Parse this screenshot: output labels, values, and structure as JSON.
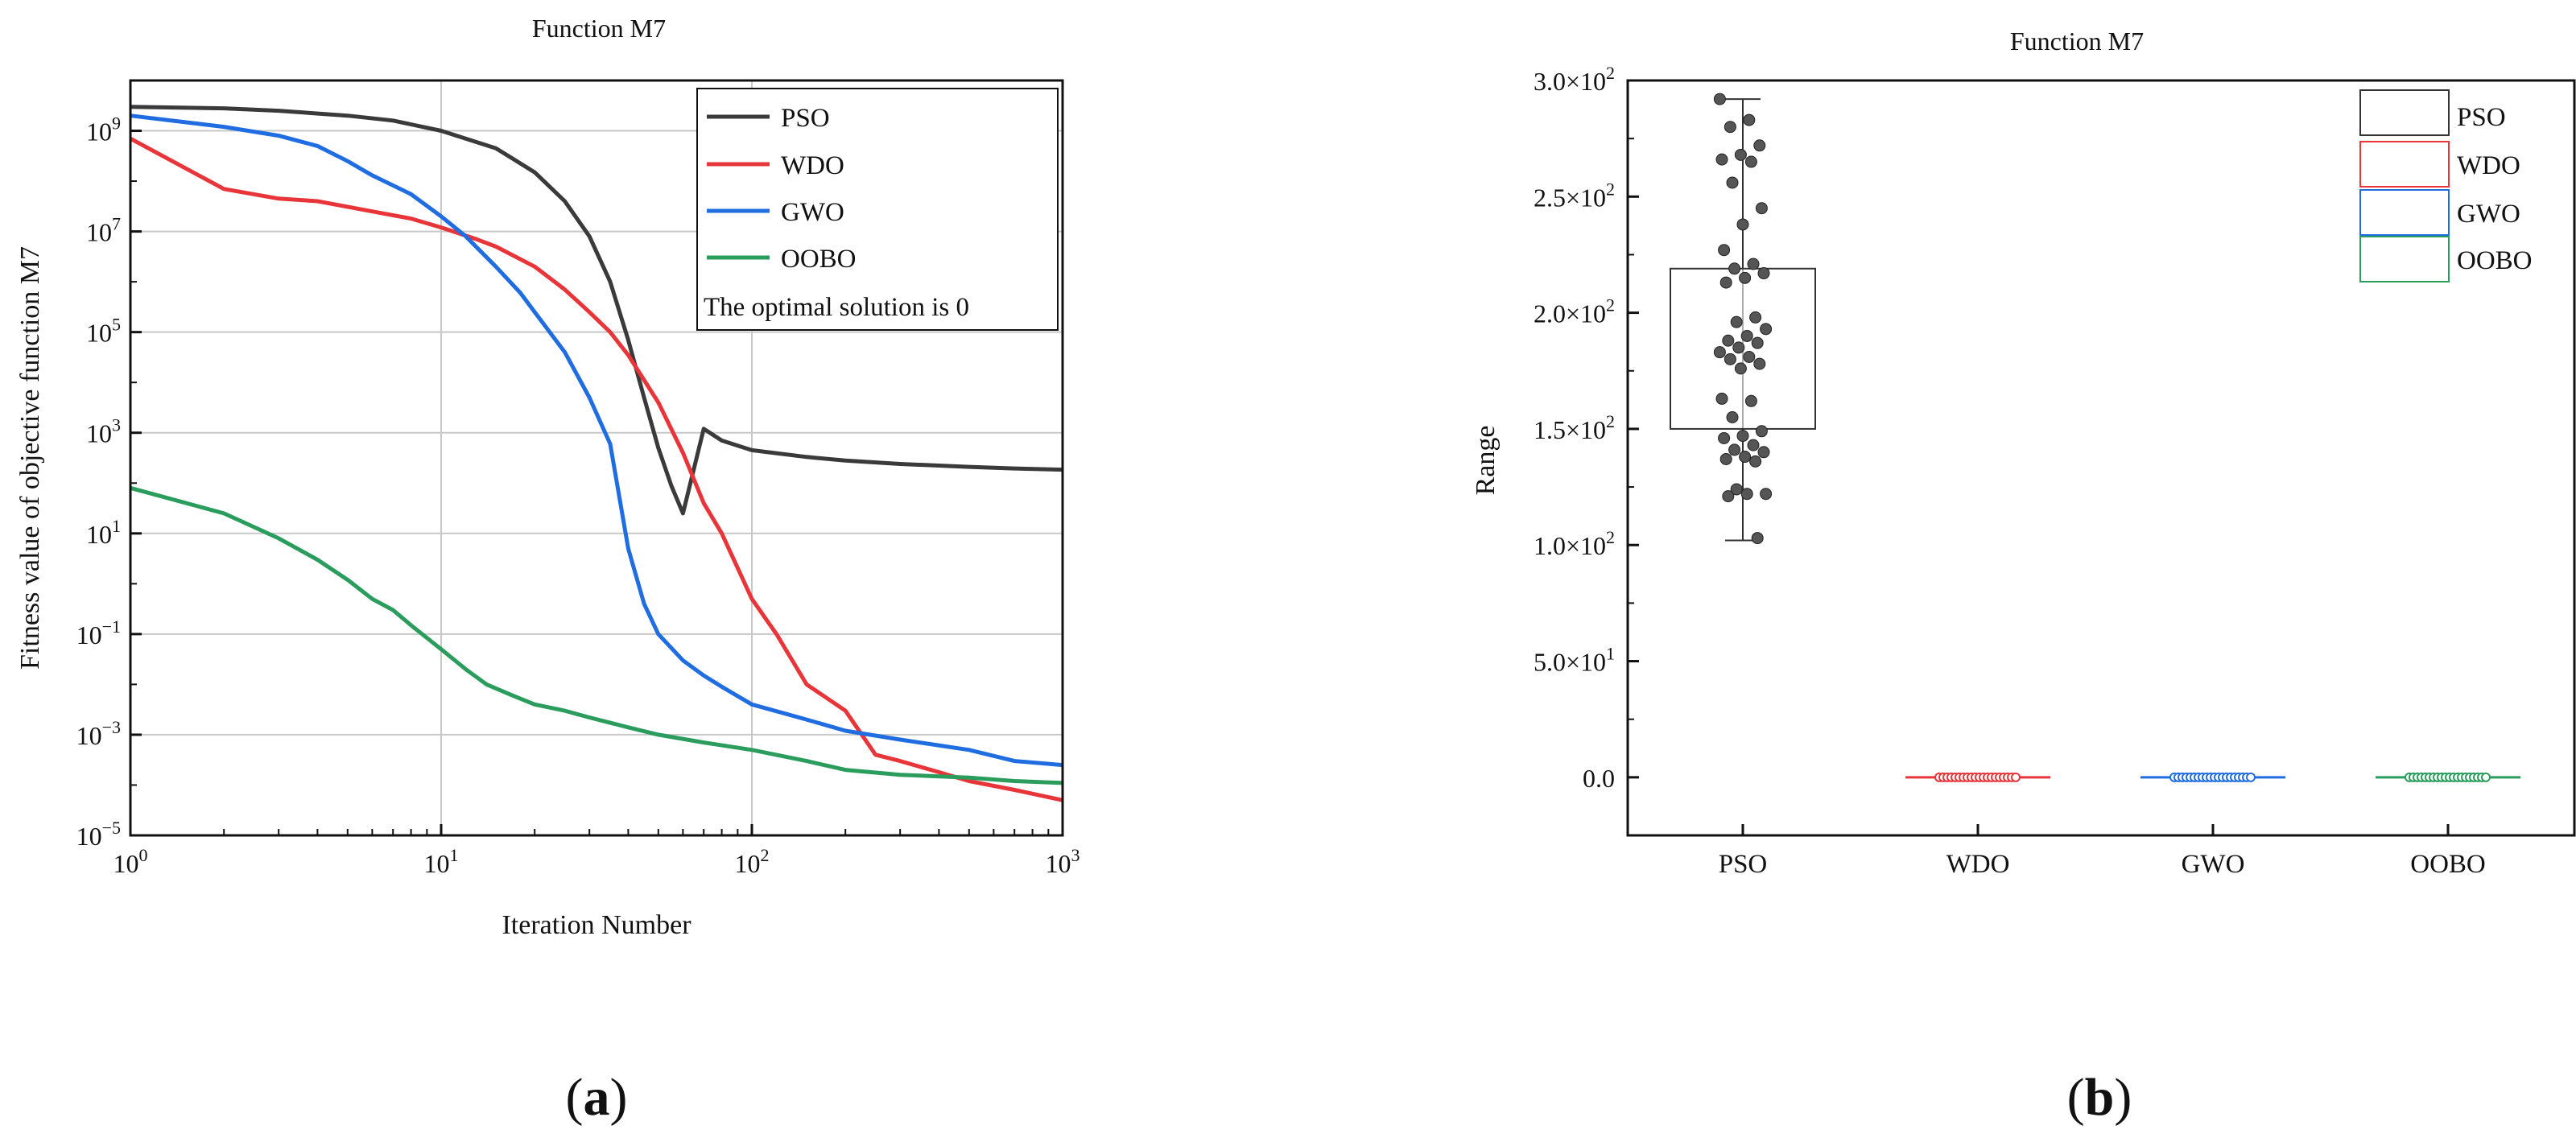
{
  "panels": {
    "a": {
      "label_open": "(",
      "label_letter": "a",
      "label_close": ")"
    },
    "b": {
      "label_open": "(",
      "label_letter": "b",
      "label_close": ")"
    }
  },
  "chart_data": [
    {
      "type": "line",
      "title": "Function M7",
      "xlabel": "Iteration Number",
      "ylabel": "Fitness value of objective function M7",
      "xscale": "log",
      "yscale": "log",
      "xlim": [
        1,
        1000
      ],
      "ylim": [
        1e-05,
        10000000000
      ],
      "grid": true,
      "x_ticks": [
        {
          "base": "10",
          "exp": "0"
        },
        {
          "base": "10",
          "exp": "1"
        },
        {
          "base": "10",
          "exp": "2"
        },
        {
          "base": "10",
          "exp": "3"
        }
      ],
      "y_ticks": [
        {
          "base": "10",
          "exp": "9"
        },
        {
          "base": "10",
          "exp": "7"
        },
        {
          "base": "10",
          "exp": "5"
        },
        {
          "base": "10",
          "exp": "3"
        },
        {
          "base": "10",
          "exp": "1"
        },
        {
          "base": "10",
          "exp": "−1"
        },
        {
          "base": "10",
          "exp": "−3"
        },
        {
          "base": "10",
          "exp": "−5"
        }
      ],
      "legend_position": "top-right",
      "legend_note": "The optimal solution is 0",
      "series": [
        {
          "name": "PSO",
          "color": "#3a3a3a",
          "x": [
            1,
            2,
            3,
            5,
            7,
            10,
            15,
            20,
            25,
            30,
            35,
            40,
            45,
            50,
            55,
            60,
            70,
            80,
            100,
            150,
            200,
            300,
            500,
            700,
            1000
          ],
          "y": [
            3000000000,
            2800000000,
            2500000000,
            2000000000,
            1600000000,
            1000000000,
            450000000,
            150000000,
            40000000,
            8000000,
            1000000,
            70000,
            5000,
            500,
            90,
            25,
            1200,
            700,
            450,
            330,
            280,
            240,
            210,
            195,
            185
          ]
        },
        {
          "name": "WDO",
          "color": "#e8353a",
          "x": [
            1,
            2,
            3,
            4,
            6,
            8,
            10,
            13,
            15,
            20,
            25,
            30,
            35,
            40,
            50,
            60,
            70,
            80,
            100,
            120,
            150,
            200,
            250,
            300,
            400,
            500,
            700,
            1000
          ],
          "y": [
            700000000,
            70000000,
            45000000,
            40000000,
            25000000,
            18000000,
            12000000,
            7000000,
            5000000,
            2000000,
            700000,
            250000,
            100000,
            35000,
            4000,
            400,
            40,
            10,
            0.5,
            0.1,
            0.01,
            0.003,
            0.0004,
            0.0003,
            0.00018,
            0.00012,
            8e-05,
            5e-05
          ]
        },
        {
          "name": "GWO",
          "color": "#1f6de0",
          "x": [
            1,
            2,
            3,
            4,
            5,
            6,
            8,
            10,
            12,
            15,
            18,
            20,
            25,
            30,
            35,
            40,
            45,
            50,
            60,
            70,
            80,
            100,
            150,
            200,
            300,
            500,
            700,
            1000
          ],
          "y": [
            2000000000,
            1200000000,
            800000000,
            500000000,
            250000000,
            130000000,
            55000000,
            20000000,
            8000000,
            2000000,
            600000,
            250000,
            40000,
            5000,
            600,
            5,
            0.4,
            0.1,
            0.03,
            0.015,
            0.009,
            0.004,
            0.002,
            0.0012,
            0.0008,
            0.0005,
            0.0003,
            0.00025
          ]
        },
        {
          "name": "OOBO",
          "color": "#2a9d5c",
          "x": [
            1,
            2,
            3,
            4,
            5,
            6,
            7,
            8,
            10,
            12,
            14,
            17,
            20,
            25,
            30,
            40,
            50,
            70,
            100,
            150,
            200,
            300,
            500,
            700,
            1000
          ],
          "y": [
            80,
            25,
            8,
            3,
            1.2,
            0.5,
            0.3,
            0.15,
            0.05,
            0.02,
            0.01,
            0.006,
            0.004,
            0.003,
            0.0022,
            0.0014,
            0.001,
            0.0007,
            0.0005,
            0.0003,
            0.0002,
            0.00016,
            0.00014,
            0.00012,
            0.00011
          ]
        }
      ]
    },
    {
      "type": "box",
      "title": "Function M7",
      "ylabel": "Range",
      "ylim": [
        -25,
        300
      ],
      "y_ticks": [
        {
          "mant": "0.0",
          "exp": ""
        },
        {
          "mant": "5.0×10",
          "exp": "1"
        },
        {
          "mant": "1.0×10",
          "exp": "2"
        },
        {
          "mant": "1.5×10",
          "exp": "2"
        },
        {
          "mant": "2.0×10",
          "exp": "2"
        },
        {
          "mant": "2.5×10",
          "exp": "2"
        },
        {
          "mant": "3.0×10",
          "exp": "2"
        }
      ],
      "y_tick_values": [
        0,
        50,
        100,
        150,
        200,
        250,
        300
      ],
      "categories": [
        "PSO",
        "WDO",
        "GWO",
        "OOBO"
      ],
      "legend_position": "top-right",
      "series": [
        {
          "name": "PSO",
          "color": "#333333",
          "q1": 150,
          "q3": 219,
          "whisker_low": 102,
          "whisker_high": 292,
          "points": [
            292,
            283,
            280,
            272,
            268,
            266,
            265,
            256,
            245,
            238,
            227,
            221,
            219,
            217,
            215,
            213,
            198,
            196,
            193,
            190,
            188,
            187,
            185,
            183,
            181,
            180,
            178,
            176,
            163,
            162,
            155,
            149,
            147,
            146,
            143,
            141,
            140,
            138,
            137,
            136,
            124,
            122,
            122,
            121,
            103
          ]
        },
        {
          "name": "WDO",
          "color": "#e8353a",
          "q1": 0,
          "q3": 0,
          "whisker_low": 0,
          "whisker_high": 0,
          "points": [
            0,
            0,
            0,
            0,
            0,
            0,
            0,
            0,
            0,
            0,
            0,
            0,
            0,
            0,
            0,
            0,
            0,
            0,
            0,
            0
          ]
        },
        {
          "name": "GWO",
          "color": "#1f6de0",
          "q1": 0,
          "q3": 0,
          "whisker_low": 0,
          "whisker_high": 0,
          "points": [
            0,
            0,
            0,
            0,
            0,
            0,
            0,
            0,
            0,
            0,
            0,
            0,
            0,
            0,
            0,
            0,
            0,
            0,
            0,
            0
          ]
        },
        {
          "name": "OOBO",
          "color": "#2a9d5c",
          "q1": 0,
          "q3": 0,
          "whisker_low": 0,
          "whisker_high": 0,
          "points": [
            0,
            0,
            0,
            0,
            0,
            0,
            0,
            0,
            0,
            0,
            0,
            0,
            0,
            0,
            0,
            0,
            0,
            0,
            0,
            0
          ]
        }
      ]
    }
  ]
}
